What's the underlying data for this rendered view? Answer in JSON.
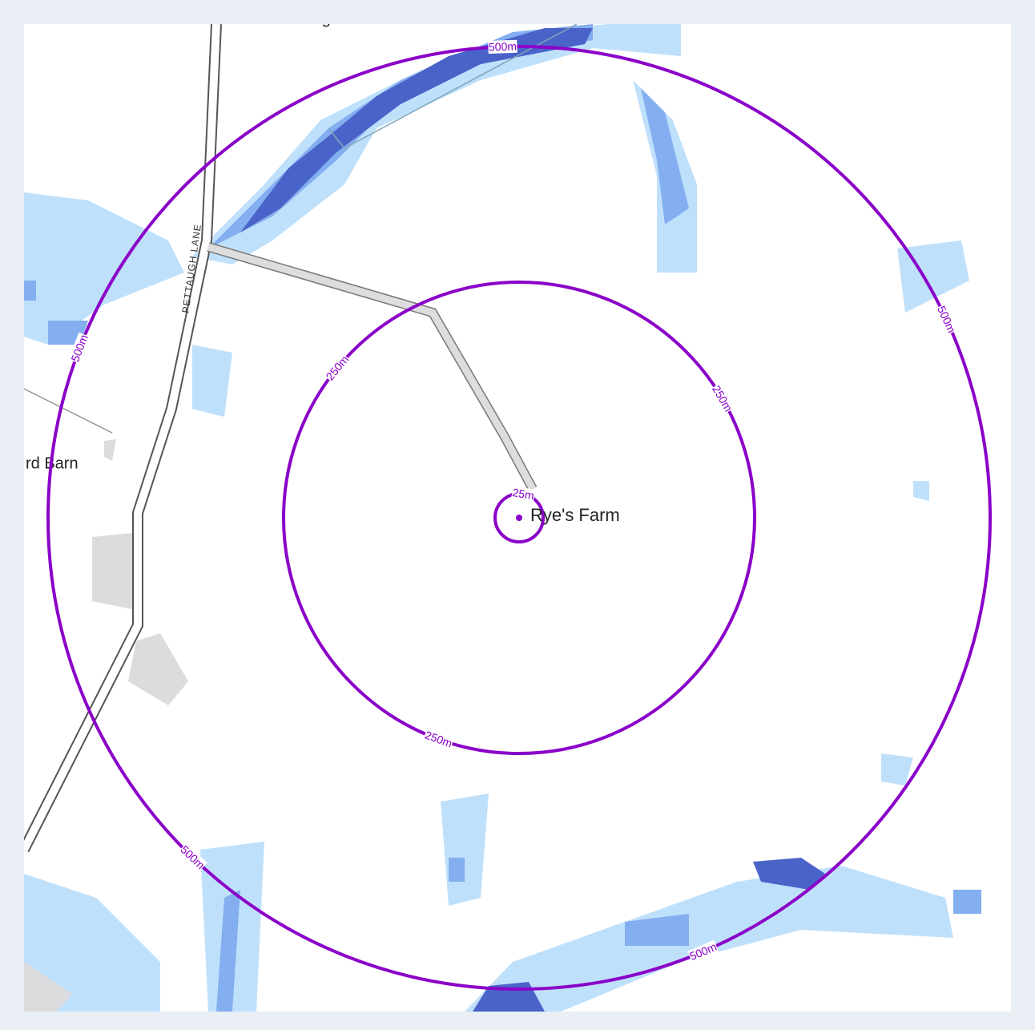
{
  "map": {
    "labels": {
      "north_place": "Moat Cottage",
      "west_place": "rd Barn",
      "road": "PETTAUGH LANE",
      "site": "Rye's Farm"
    },
    "rings": [
      {
        "label": "25m",
        "label_count": 1
      },
      {
        "label": "250m",
        "label_count": 3
      },
      {
        "label": "500m",
        "label_count": 5
      }
    ]
  }
}
